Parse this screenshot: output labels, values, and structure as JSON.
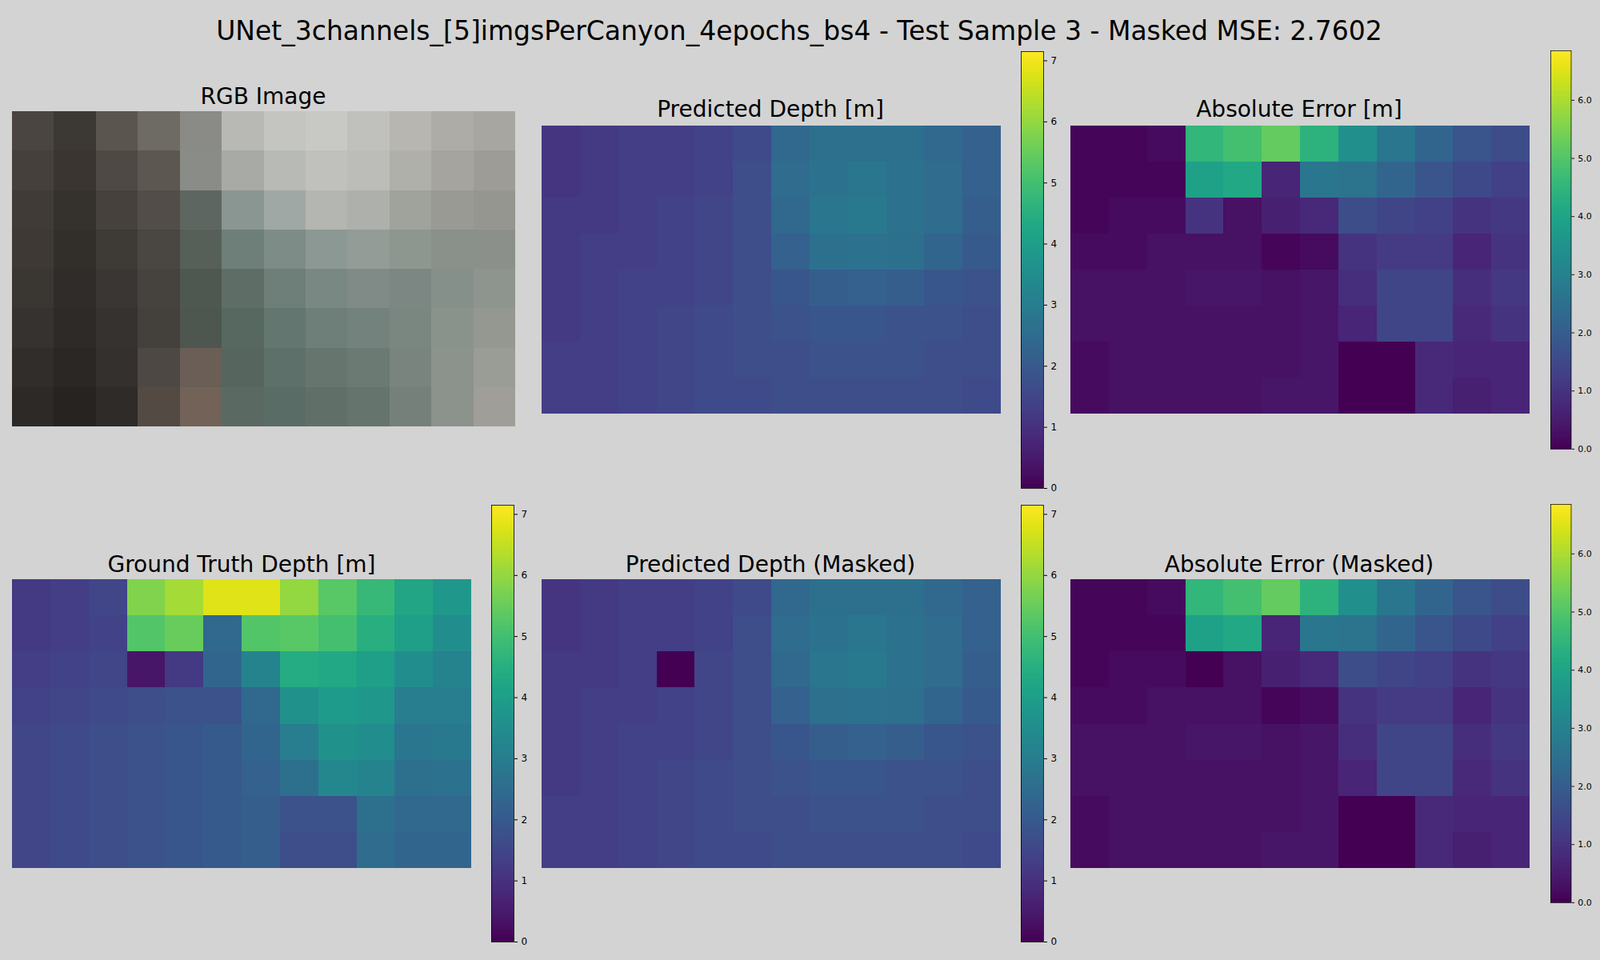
{
  "title": "UNet_3channels_[5]imgsPerCanyon_4epochs_bs4 - Test Sample 3 - Masked MSE: 2.7602",
  "chart_data": [
    {
      "type": "image",
      "title": "RGB Image",
      "pixels": [
        [
          "#4a4540",
          "#3c3834",
          "#5a554f",
          "#6e6a64",
          "#8a8a86",
          "#b8b8b4",
          "#c4c4c0",
          "#c8c8c4",
          "#c0c0bc",
          "#b8b6b0",
          "#aeaca6",
          "#a8a6a0"
        ],
        [
          "#45403b",
          "#3a3531",
          "#4e4944",
          "#5c5751",
          "#8a8c88",
          "#a8aaa6",
          "#b8bab6",
          "#c0c0bc",
          "#bcbcb8",
          "#b0b0aa",
          "#a6a49e",
          "#9e9c96"
        ],
        [
          "#403b36",
          "#35312d",
          "#46413c",
          "#524d48",
          "#5e6662",
          "#8a9692",
          "#a0a8a6",
          "#b4b6b2",
          "#aeb0ac",
          "#a0a29c",
          "#9a9a94",
          "#969690"
        ],
        [
          "#3e3935",
          "#322e2a",
          "#3e3a36",
          "#4a4642",
          "#566058",
          "#6e7e78",
          "#7e8c88",
          "#8c9894",
          "#949c98",
          "#8e9690",
          "#8a908a",
          "#8c908a"
        ],
        [
          "#3a3632",
          "#302c29",
          "#3a3633",
          "#46423e",
          "#4e5850",
          "#5e6e66",
          "#6e7e78",
          "#7a8884",
          "#808a86",
          "#7c8682",
          "#86908a",
          "#8e948e"
        ],
        [
          "#363230",
          "#2e2a27",
          "#363230",
          "#44403c",
          "#4e5650",
          "#566860",
          "#647670",
          "#6e7e78",
          "#74827e",
          "#7a8680",
          "#8a928c",
          "#949890"
        ],
        [
          "#302d2a",
          "#2a2724",
          "#34302d",
          "#4e4844",
          "#6a5e56",
          "#56665e",
          "#5e706a",
          "#66766f",
          "#6c7a74",
          "#7a847e",
          "#8c928c",
          "#9a9c96"
        ],
        [
          "#2c2926",
          "#262320",
          "#2e2b28",
          "#544a44",
          "#726258",
          "#5a6a62",
          "#5a6c66",
          "#607068",
          "#66746e",
          "#76807a",
          "#8c928c",
          "#a09e98"
        ]
      ],
      "tick_labels": false
    },
    {
      "type": "heatmap",
      "title": "Predicted Depth [m]",
      "color": "viridis",
      "tick_labels": false,
      "values": [
        [
          1.1,
          1.2,
          1.3,
          1.3,
          1.4,
          1.6,
          2.4,
          2.6,
          2.6,
          2.6,
          2.4,
          2.2
        ],
        [
          1.1,
          1.2,
          1.3,
          1.3,
          1.4,
          1.7,
          2.5,
          2.7,
          2.8,
          2.7,
          2.5,
          2.2
        ],
        [
          1.2,
          1.2,
          1.3,
          1.4,
          1.5,
          1.7,
          2.4,
          2.8,
          2.9,
          2.7,
          2.5,
          2.1
        ],
        [
          1.2,
          1.3,
          1.3,
          1.4,
          1.5,
          1.7,
          2.2,
          2.6,
          2.7,
          2.6,
          2.3,
          2.0
        ],
        [
          1.2,
          1.3,
          1.4,
          1.4,
          1.5,
          1.7,
          1.9,
          2.1,
          2.2,
          2.1,
          1.9,
          1.8
        ],
        [
          1.2,
          1.3,
          1.4,
          1.5,
          1.6,
          1.7,
          1.8,
          1.9,
          1.9,
          1.8,
          1.8,
          1.7
        ],
        [
          1.3,
          1.3,
          1.4,
          1.5,
          1.6,
          1.7,
          1.7,
          1.8,
          1.8,
          1.8,
          1.7,
          1.7
        ],
        [
          1.3,
          1.3,
          1.4,
          1.5,
          1.6,
          1.6,
          1.7,
          1.7,
          1.7,
          1.7,
          1.7,
          1.6
        ]
      ],
      "colorbar": {
        "range": [
          0,
          7.15
        ],
        "ticks": [
          0,
          1,
          2,
          3,
          4,
          5,
          6,
          7
        ]
      }
    },
    {
      "type": "heatmap",
      "title": "Absolute Error [m]",
      "color": "viridis",
      "tick_labels": false,
      "values": [
        [
          0.1,
          0.1,
          0.2,
          4.5,
          4.8,
          5.2,
          4.4,
          3.4,
          2.7,
          2.2,
          1.8,
          1.6
        ],
        [
          0.1,
          0.1,
          0.1,
          3.9,
          4.1,
          0.7,
          2.7,
          2.6,
          2.2,
          1.8,
          1.5,
          1.3
        ],
        [
          0.1,
          0.2,
          0.2,
          1.0,
          0.3,
          0.6,
          0.8,
          1.6,
          1.4,
          1.3,
          1.0,
          1.1
        ],
        [
          0.2,
          0.2,
          0.3,
          0.3,
          0.3,
          0.1,
          0.2,
          1.0,
          1.2,
          1.2,
          0.7,
          1.0
        ],
        [
          0.3,
          0.3,
          0.3,
          0.4,
          0.4,
          0.3,
          0.4,
          0.9,
          1.4,
          1.4,
          0.9,
          1.1
        ],
        [
          0.3,
          0.3,
          0.3,
          0.3,
          0.3,
          0.3,
          0.4,
          0.7,
          1.4,
          1.4,
          0.8,
          1.0
        ],
        [
          0.2,
          0.3,
          0.3,
          0.3,
          0.3,
          0.3,
          0.4,
          0.0,
          0.0,
          0.8,
          0.7,
          0.7
        ],
        [
          0.2,
          0.3,
          0.3,
          0.3,
          0.3,
          0.4,
          0.4,
          0.0,
          0.0,
          0.8,
          0.6,
          0.7
        ]
      ],
      "colorbar": {
        "range": [
          0,
          6.85
        ],
        "ticks": [
          0,
          1,
          2,
          3,
          4,
          5,
          6
        ]
      }
    },
    {
      "type": "heatmap",
      "title": "Ground Truth Depth [m]",
      "color": "viridis",
      "tick_labels": false,
      "values": [
        [
          1.2,
          1.3,
          1.5,
          5.8,
          6.2,
          6.8,
          6.8,
          6.0,
          5.3,
          4.8,
          4.2,
          3.8
        ],
        [
          1.2,
          1.3,
          1.4,
          5.2,
          5.5,
          2.4,
          5.2,
          5.3,
          5.0,
          4.5,
          4.0,
          3.5
        ],
        [
          1.3,
          1.4,
          1.5,
          0.4,
          1.2,
          2.3,
          3.2,
          4.4,
          4.3,
          4.0,
          3.5,
          3.2
        ],
        [
          1.4,
          1.5,
          1.6,
          1.7,
          1.8,
          1.8,
          2.4,
          3.6,
          3.9,
          3.8,
          3.0,
          3.0
        ],
        [
          1.5,
          1.6,
          1.7,
          1.8,
          1.9,
          2.0,
          2.3,
          3.0,
          3.6,
          3.5,
          2.8,
          2.9
        ],
        [
          1.5,
          1.6,
          1.7,
          1.8,
          1.9,
          2.0,
          2.2,
          2.6,
          3.3,
          3.2,
          2.6,
          2.7
        ],
        [
          1.5,
          1.6,
          1.7,
          1.8,
          1.9,
          2.0,
          2.1,
          1.8,
          1.8,
          2.6,
          2.4,
          2.4
        ],
        [
          1.5,
          1.6,
          1.7,
          1.8,
          1.9,
          2.0,
          2.1,
          1.7,
          1.7,
          2.5,
          2.3,
          2.3
        ]
      ],
      "colorbar": {
        "range": [
          0,
          7.15
        ],
        "ticks": [
          0,
          1,
          2,
          3,
          4,
          5,
          6,
          7
        ]
      }
    },
    {
      "type": "heatmap",
      "title": "Predicted Depth (Masked)",
      "color": "viridis",
      "tick_labels": false,
      "values": [
        [
          1.1,
          1.2,
          1.3,
          1.3,
          1.4,
          1.6,
          2.4,
          2.6,
          2.6,
          2.6,
          2.4,
          2.2
        ],
        [
          1.1,
          1.2,
          1.3,
          1.3,
          1.4,
          1.7,
          2.5,
          2.7,
          2.8,
          2.7,
          2.5,
          2.2
        ],
        [
          1.2,
          1.2,
          1.3,
          0.0,
          1.5,
          1.7,
          2.4,
          2.8,
          2.9,
          2.7,
          2.5,
          2.1
        ],
        [
          1.2,
          1.3,
          1.3,
          1.4,
          1.5,
          1.7,
          2.2,
          2.6,
          2.7,
          2.6,
          2.3,
          2.0
        ],
        [
          1.2,
          1.3,
          1.4,
          1.4,
          1.5,
          1.7,
          1.9,
          2.1,
          2.2,
          2.1,
          1.9,
          1.8
        ],
        [
          1.2,
          1.3,
          1.4,
          1.5,
          1.6,
          1.7,
          1.8,
          1.9,
          1.9,
          1.8,
          1.8,
          1.7
        ],
        [
          1.3,
          1.3,
          1.4,
          1.5,
          1.6,
          1.7,
          1.7,
          1.8,
          1.8,
          1.8,
          1.7,
          1.7
        ],
        [
          1.3,
          1.3,
          1.4,
          1.5,
          1.6,
          1.6,
          1.7,
          1.7,
          1.7,
          1.7,
          1.7,
          1.6
        ]
      ],
      "colorbar": {
        "range": [
          0,
          7.15
        ],
        "ticks": [
          0,
          1,
          2,
          3,
          4,
          5,
          6,
          7
        ]
      }
    },
    {
      "type": "heatmap",
      "title": "Absolute Error (Masked)",
      "color": "viridis",
      "tick_labels": false,
      "values": [
        [
          0.1,
          0.1,
          0.2,
          4.5,
          4.8,
          5.2,
          4.4,
          3.4,
          2.7,
          2.2,
          1.8,
          1.6
        ],
        [
          0.1,
          0.1,
          0.1,
          3.9,
          4.1,
          0.7,
          2.7,
          2.6,
          2.2,
          1.8,
          1.5,
          1.3
        ],
        [
          0.1,
          0.2,
          0.2,
          0.0,
          0.3,
          0.6,
          0.8,
          1.6,
          1.4,
          1.3,
          1.0,
          1.1
        ],
        [
          0.2,
          0.2,
          0.3,
          0.3,
          0.3,
          0.1,
          0.2,
          1.0,
          1.2,
          1.2,
          0.7,
          1.0
        ],
        [
          0.3,
          0.3,
          0.3,
          0.4,
          0.4,
          0.3,
          0.4,
          0.9,
          1.4,
          1.4,
          0.9,
          1.1
        ],
        [
          0.3,
          0.3,
          0.3,
          0.3,
          0.3,
          0.3,
          0.4,
          0.7,
          1.4,
          1.4,
          0.8,
          1.0
        ],
        [
          0.2,
          0.3,
          0.3,
          0.3,
          0.3,
          0.3,
          0.4,
          0.0,
          0.0,
          0.8,
          0.7,
          0.7
        ],
        [
          0.2,
          0.3,
          0.3,
          0.3,
          0.3,
          0.4,
          0.4,
          0.0,
          0.0,
          0.8,
          0.6,
          0.7
        ]
      ],
      "colorbar": {
        "range": [
          0,
          6.85
        ],
        "ticks": [
          0,
          1,
          2,
          3,
          4,
          5,
          6
        ]
      }
    }
  ]
}
